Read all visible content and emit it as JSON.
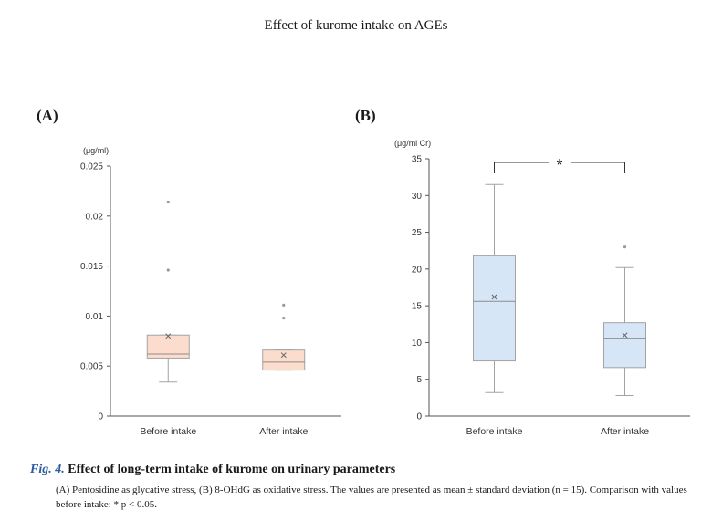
{
  "page_title": "Effect of kurome intake on AGEs",
  "caption": {
    "prefix": "Fig. 4.",
    "title": "Effect of long-term intake of kurome on urinary parameters",
    "body": "(A) Pentosidine as glycative stress, (B) 8-OHdG as oxidative stress. The values are presented as mean ± standard deviation (n = 15). Comparison with values before intake: * p < 0.05."
  },
  "colors": {
    "panel_a_fill": "#fbdccd",
    "panel_b_fill": "#d6e6f7",
    "box_stroke": "#a3a3a3",
    "axis": "#555555"
  },
  "chart_data": [
    {
      "type": "box",
      "panel_label": "(A)",
      "ylabel": "(μg/ml)",
      "ylim": [
        0,
        0.025
      ],
      "yticks": [
        0,
        0.005,
        0.01,
        0.015,
        0.02,
        0.025
      ],
      "ytick_labels": [
        "0",
        "0.005",
        "0.01",
        "0.015",
        "0.02",
        "0.025"
      ],
      "categories": [
        "Before intake",
        "After intake"
      ],
      "boxes": [
        {
          "min": 0.0034,
          "q1": 0.0058,
          "median": 0.0062,
          "q3": 0.0081,
          "max": 0.0081,
          "mean": 0.008,
          "outliers": [
            0.0146,
            0.0214
          ]
        },
        {
          "min": 0.0046,
          "q1": 0.0046,
          "median": 0.0054,
          "q3": 0.0066,
          "max": 0.0066,
          "mean": 0.0061,
          "outliers": [
            0.0098,
            0.0111
          ]
        }
      ],
      "significance": null
    },
    {
      "type": "box",
      "panel_label": "(B)",
      "ylabel": "(μg/ml Cr)",
      "ylim": [
        0,
        35
      ],
      "yticks": [
        0,
        5,
        10,
        15,
        20,
        25,
        30,
        35
      ],
      "ytick_labels": [
        "0",
        "5",
        "10",
        "15",
        "20",
        "25",
        "30",
        "35"
      ],
      "categories": [
        "Before intake",
        "After intake"
      ],
      "boxes": [
        {
          "min": 3.2,
          "q1": 7.5,
          "median": 15.6,
          "q3": 21.8,
          "max": 31.5,
          "mean": 16.2,
          "outliers": []
        },
        {
          "min": 2.8,
          "q1": 6.6,
          "median": 10.6,
          "q3": 12.7,
          "max": 20.2,
          "mean": 11.0,
          "outliers": [
            23.0
          ]
        }
      ],
      "significance": {
        "label": "*",
        "level": 34.5
      }
    }
  ]
}
